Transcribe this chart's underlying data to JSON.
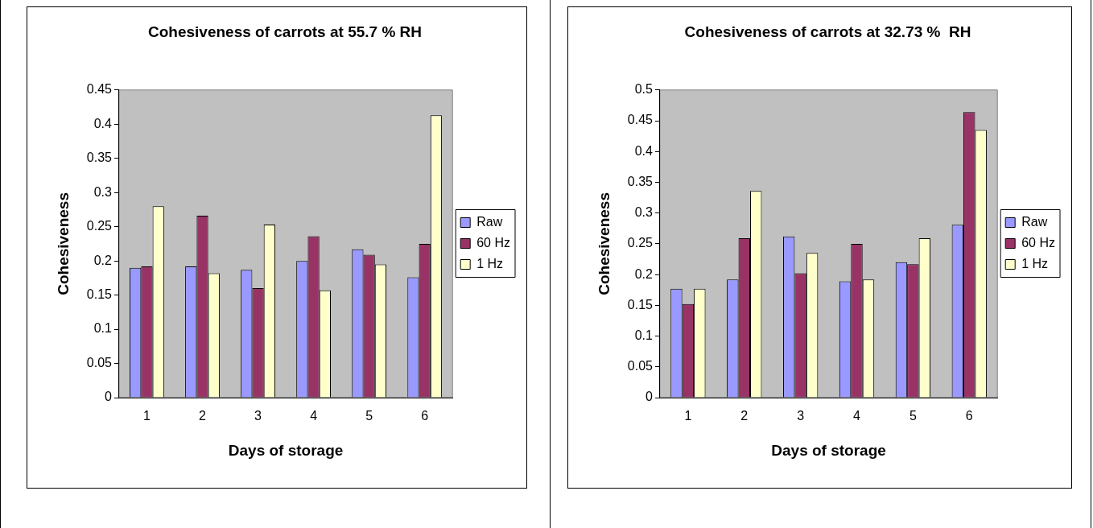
{
  "chart_data": [
    {
      "type": "bar",
      "title": "Cohesiveness of carrots at 55.7 % RH",
      "xlabel": "Days of storage",
      "ylabel": "Cohesiveness",
      "categories": [
        "1",
        "2",
        "3",
        "4",
        "5",
        "6"
      ],
      "series": [
        {
          "name": "Raw",
          "color": "#9999ff",
          "values": [
            0.19,
            0.192,
            0.187,
            0.2,
            0.217,
            0.176
          ]
        },
        {
          "name": "60 Hz",
          "color": "#993366",
          "values": [
            0.192,
            0.266,
            0.16,
            0.236,
            0.209,
            0.225
          ]
        },
        {
          "name": "1 Hz",
          "color": "#ffffcc",
          "values": [
            0.28,
            0.182,
            0.253,
            0.157,
            0.195,
            0.413
          ]
        }
      ],
      "ylim": [
        0,
        0.45
      ],
      "yticks": [
        0,
        0.05,
        0.1,
        0.15,
        0.2,
        0.25,
        0.3,
        0.35,
        0.4,
        0.45
      ],
      "grid": false,
      "legend": "right"
    },
    {
      "type": "bar",
      "title": "Cohesiveness of carrots at 32.73 %  RH",
      "xlabel": "Days of storage",
      "ylabel": "Cohesiveness",
      "categories": [
        "1",
        "2",
        "3",
        "4",
        "5",
        "6"
      ],
      "series": [
        {
          "name": "Raw",
          "color": "#9999ff",
          "values": [
            0.177,
            0.192,
            0.262,
            0.189,
            0.22,
            0.281
          ]
        },
        {
          "name": "60 Hz",
          "color": "#993366",
          "values": [
            0.152,
            0.259,
            0.202,
            0.25,
            0.217,
            0.464
          ]
        },
        {
          "name": "1 Hz",
          "color": "#ffffcc",
          "values": [
            0.177,
            0.336,
            0.235,
            0.192,
            0.259,
            0.435
          ]
        }
      ],
      "ylim": [
        0,
        0.5
      ],
      "yticks": [
        0,
        0.05,
        0.1,
        0.15,
        0.2,
        0.25,
        0.3,
        0.35,
        0.4,
        0.45,
        0.5
      ],
      "grid": false,
      "legend": "right"
    }
  ]
}
